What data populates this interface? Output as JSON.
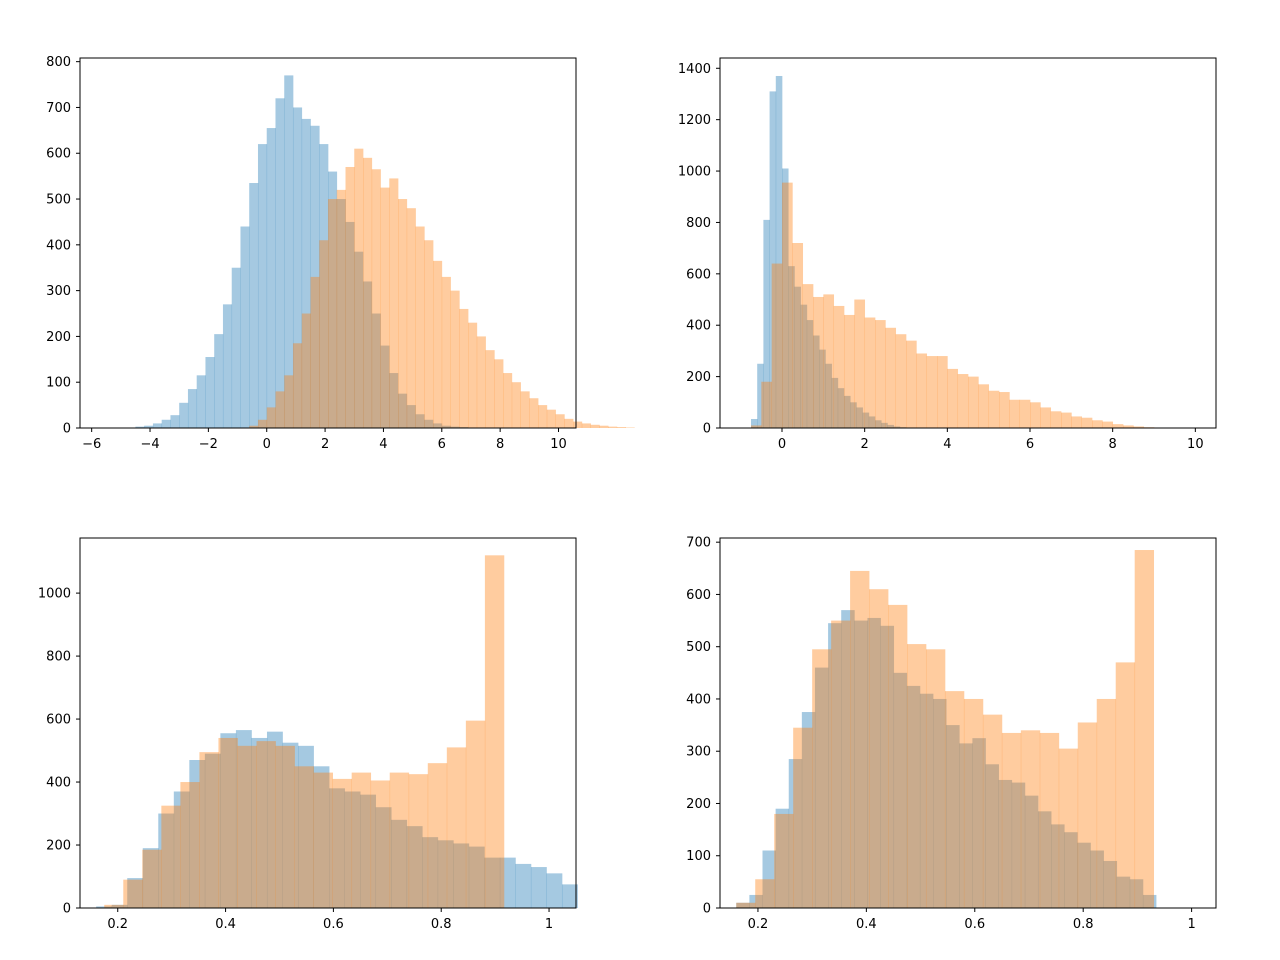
{
  "chart_data": [
    {
      "type": "histogram",
      "panel": "top-left",
      "title": "",
      "xlabel": "",
      "ylabel": "",
      "xlim": [
        -6.4,
        10.6
      ],
      "ylim": [
        0,
        808
      ],
      "xticks": [
        -6,
        -4,
        -2,
        0,
        2,
        4,
        6,
        8,
        10
      ],
      "yticks": [
        0,
        100,
        200,
        300,
        400,
        500,
        600,
        700,
        800
      ],
      "grid": false,
      "legend": "none",
      "series": [
        {
          "color": "#1f77b4",
          "opacity": 0.4,
          "bin_start": -4.5,
          "bin_width": 0.3,
          "counts": [
            3,
            5,
            10,
            18,
            28,
            55,
            85,
            115,
            155,
            205,
            270,
            350,
            440,
            535,
            620,
            655,
            720,
            770,
            700,
            675,
            660,
            620,
            560,
            500,
            450,
            385,
            320,
            250,
            180,
            120,
            75,
            50,
            30,
            18,
            10,
            5,
            3,
            2,
            1
          ]
        },
        {
          "color": "#ff7f0e",
          "opacity": 0.4,
          "bin_start": -0.6,
          "bin_width": 0.3,
          "counts": [
            5,
            18,
            45,
            80,
            115,
            185,
            250,
            330,
            410,
            500,
            520,
            570,
            610,
            590,
            565,
            525,
            545,
            500,
            480,
            440,
            410,
            365,
            330,
            300,
            260,
            230,
            200,
            170,
            150,
            120,
            100,
            80,
            65,
            50,
            40,
            30,
            20,
            14,
            10,
            7,
            5,
            3,
            2,
            1
          ]
        }
      ]
    },
    {
      "type": "histogram",
      "panel": "top-right",
      "title": "",
      "xlabel": "",
      "ylabel": "",
      "xlim": [
        -1.5,
        10.5
      ],
      "ylim": [
        0,
        1440
      ],
      "xticks": [
        0,
        2,
        4,
        6,
        8,
        10
      ],
      "yticks": [
        0,
        200,
        400,
        600,
        800,
        1000,
        1200,
        1400
      ],
      "grid": false,
      "legend": "none",
      "series": [
        {
          "color": "#1f77b4",
          "opacity": 0.4,
          "bin_start": -0.75,
          "bin_width": 0.15,
          "counts": [
            35,
            250,
            810,
            1310,
            1370,
            1010,
            630,
            550,
            480,
            420,
            360,
            305,
            250,
            195,
            155,
            125,
            100,
            80,
            60,
            45,
            30,
            20,
            12,
            6,
            3
          ]
        },
        {
          "color": "#ff7f0e",
          "opacity": 0.4,
          "bin_start": -0.75,
          "bin_width": 0.25,
          "counts": [
            10,
            180,
            640,
            955,
            720,
            560,
            510,
            520,
            475,
            440,
            500,
            430,
            420,
            390,
            365,
            340,
            290,
            280,
            280,
            230,
            210,
            200,
            170,
            145,
            140,
            110,
            110,
            100,
            80,
            65,
            60,
            45,
            40,
            30,
            25,
            15,
            10,
            6,
            3,
            1
          ]
        }
      ]
    },
    {
      "type": "histogram",
      "panel": "bottom-left",
      "title": "",
      "xlabel": "",
      "ylabel": "",
      "xlim": [
        0.13,
        1.05
      ],
      "ylim": [
        0,
        1175
      ],
      "xticks": [
        0.2,
        0.4,
        0.6,
        0.8,
        1.0
      ],
      "yticks": [
        0,
        200,
        400,
        600,
        800,
        1000
      ],
      "grid": false,
      "legend": "none",
      "series": [
        {
          "color": "#1f77b4",
          "opacity": 0.4,
          "bin_start": 0.16,
          "bin_width": 0.0288,
          "counts": [
            5,
            10,
            95,
            190,
            300,
            370,
            470,
            490,
            555,
            565,
            540,
            560,
            525,
            515,
            450,
            380,
            370,
            360,
            320,
            280,
            260,
            225,
            215,
            205,
            195,
            160,
            160,
            140,
            130,
            110,
            75
          ]
        },
        {
          "color": "#ff7f0e",
          "opacity": 0.4,
          "bin_start": 0.175,
          "bin_width": 0.0353,
          "counts": [
            10,
            90,
            185,
            325,
            400,
            495,
            540,
            515,
            530,
            515,
            450,
            430,
            410,
            430,
            405,
            430,
            425,
            460,
            510,
            595,
            1120
          ]
        }
      ]
    },
    {
      "type": "histogram",
      "panel": "bottom-right",
      "title": "",
      "xlabel": "",
      "ylabel": "",
      "xlim": [
        0.13,
        1.045
      ],
      "ylim": [
        0,
        708
      ],
      "xticks": [
        0.2,
        0.4,
        0.6,
        0.8,
        1.0
      ],
      "yticks": [
        0,
        100,
        200,
        300,
        400,
        500,
        600,
        700
      ],
      "grid": false,
      "legend": "none",
      "series": [
        {
          "color": "#1f77b4",
          "opacity": 0.4,
          "bin_start": 0.16,
          "bin_width": 0.0242,
          "counts": [
            10,
            25,
            110,
            190,
            285,
            375,
            460,
            545,
            570,
            550,
            555,
            540,
            450,
            425,
            410,
            400,
            350,
            315,
            325,
            275,
            245,
            240,
            215,
            185,
            160,
            145,
            125,
            110,
            90,
            60,
            55,
            25
          ]
        },
        {
          "color": "#ff7f0e",
          "opacity": 0.4,
          "bin_start": 0.16,
          "bin_width": 0.035,
          "counts": [
            10,
            55,
            180,
            345,
            495,
            550,
            645,
            610,
            580,
            505,
            495,
            415,
            400,
            370,
            335,
            340,
            335,
            305,
            355,
            400,
            470,
            685
          ]
        }
      ]
    }
  ]
}
